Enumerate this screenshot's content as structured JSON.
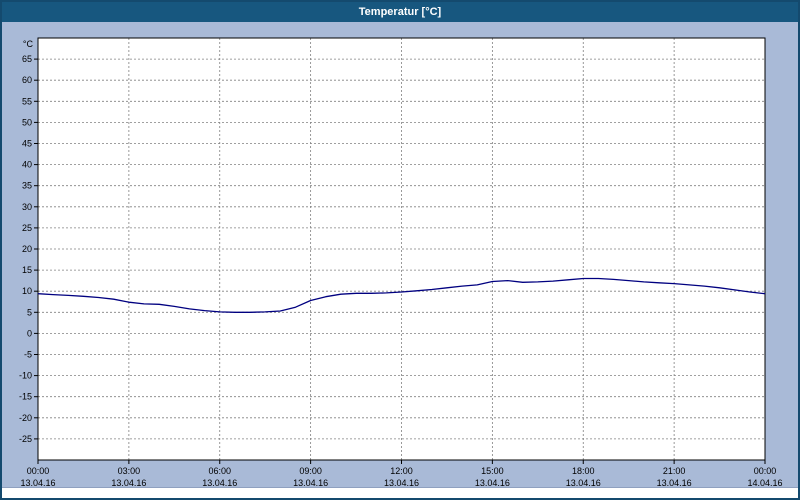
{
  "title": "Temperatur [°C]",
  "colors": {
    "titlebar_bg": "#17577f",
    "titlebar_text": "#ffffff",
    "window_border": "#144a6e",
    "background": "#a9bad7",
    "plot_bg": "#ffffff",
    "grid": "#808080",
    "axis": "#000000",
    "line": "#000080",
    "scrollbar_bg": "#ffffff"
  },
  "chart_data": {
    "type": "line",
    "title": "Temperatur [°C]",
    "xlabel": "",
    "ylabel": "°C",
    "ylim": [
      -30,
      70
    ],
    "yticks": [
      65,
      60,
      55,
      50,
      45,
      40,
      35,
      30,
      25,
      20,
      15,
      10,
      5,
      0,
      -5,
      -10,
      -15,
      -20,
      -25
    ],
    "xlim_hours": [
      0,
      24
    ],
    "grid": "dashed",
    "legend_position": "none",
    "xticks": [
      {
        "hour": 0,
        "time": "00:00",
        "date": "13.04.16"
      },
      {
        "hour": 3,
        "time": "03:00",
        "date": "13.04.16"
      },
      {
        "hour": 6,
        "time": "06:00",
        "date": "13.04.16"
      },
      {
        "hour": 9,
        "time": "09:00",
        "date": "13.04.16"
      },
      {
        "hour": 12,
        "time": "12:00",
        "date": "13.04.16"
      },
      {
        "hour": 15,
        "time": "15:00",
        "date": "13.04.16"
      },
      {
        "hour": 18,
        "time": "18:00",
        "date": "13.04.16"
      },
      {
        "hour": 21,
        "time": "21:00",
        "date": "13.04.16"
      },
      {
        "hour": 24,
        "time": "00:00",
        "date": "14.04.16"
      }
    ],
    "series": [
      {
        "name": "Temperatur",
        "color": "#000080",
        "x_start_hour": 0,
        "x_interval_hours": 0.5,
        "values": [
          9.4,
          9.2,
          9.0,
          8.8,
          8.5,
          8.1,
          7.4,
          7.0,
          6.9,
          6.4,
          5.8,
          5.4,
          5.1,
          5.0,
          5.0,
          5.1,
          5.3,
          6.2,
          7.8,
          8.7,
          9.3,
          9.5,
          9.5,
          9.6,
          9.8,
          10.1,
          10.4,
          10.8,
          11.2,
          11.5,
          12.3,
          12.5,
          12.1,
          12.2,
          12.4,
          12.7,
          13.0,
          13.0,
          12.8,
          12.5,
          12.2,
          12.0,
          11.8,
          11.5,
          11.2,
          10.8,
          10.3,
          9.8,
          9.4
        ]
      }
    ]
  }
}
